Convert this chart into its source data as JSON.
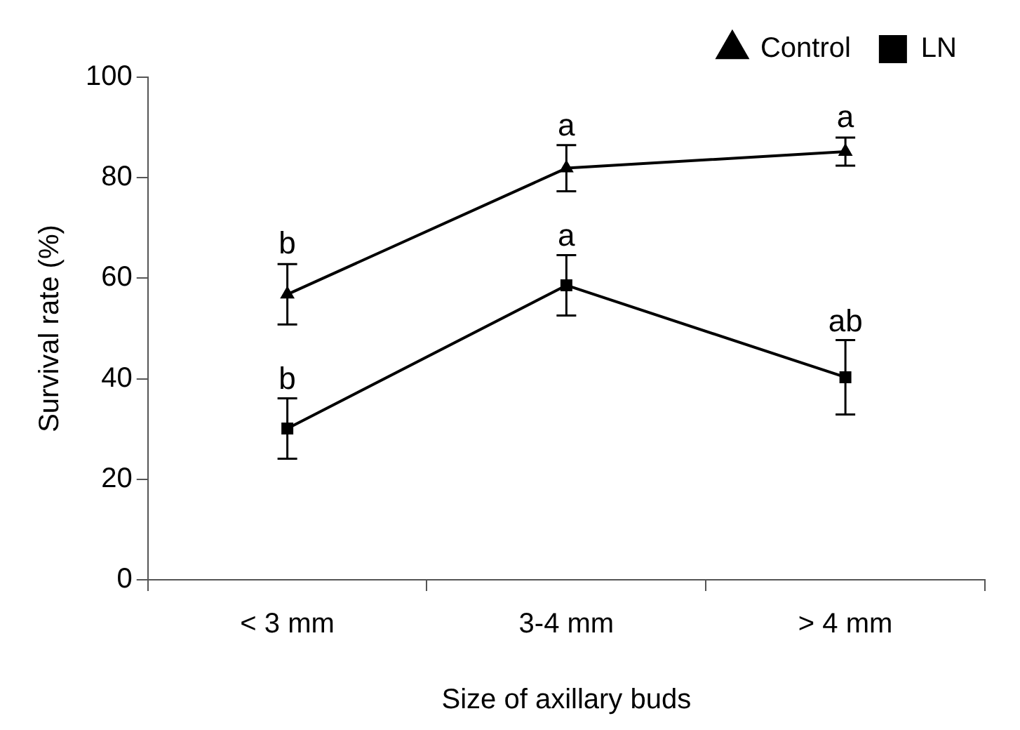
{
  "chart_data": {
    "type": "line",
    "xlabel": "Size of axillary buds",
    "ylabel": "Survival rate (%)",
    "categories": [
      "< 3 mm",
      "3-4 mm",
      "> 4 mm"
    ],
    "series": [
      {
        "name": "Control",
        "color": "#000000",
        "marker": "triangle",
        "values": [
          56.8,
          81.9,
          85.2
        ],
        "errors": [
          6,
          4.6,
          2.8
        ]
      },
      {
        "name": "LN",
        "color": "#000000",
        "marker": "square",
        "values": [
          30.1,
          58.6,
          40.3
        ],
        "errors": [
          6,
          6,
          7.4
        ]
      }
    ],
    "ylim": [
      0,
      100
    ],
    "yticks": [
      0,
      20,
      40,
      60,
      80,
      100
    ],
    "grid": false,
    "legend": "top right",
    "line_style": "solid",
    "annotations": [
      {
        "text": "b",
        "x": "< 3 mm",
        "y": 63
      },
      {
        "text": "a",
        "x": "3-4 mm",
        "y": 86.5
      },
      {
        "text": "a",
        "x": "> 4 mm",
        "y": 88.1
      },
      {
        "text": "b",
        "x": "< 3 mm",
        "y": 36
      },
      {
        "text": "a",
        "x": "3-4 mm",
        "y": 64.6
      },
      {
        "text": "ab",
        "x": "> 4 mm",
        "y": 47.5
      }
    ]
  }
}
